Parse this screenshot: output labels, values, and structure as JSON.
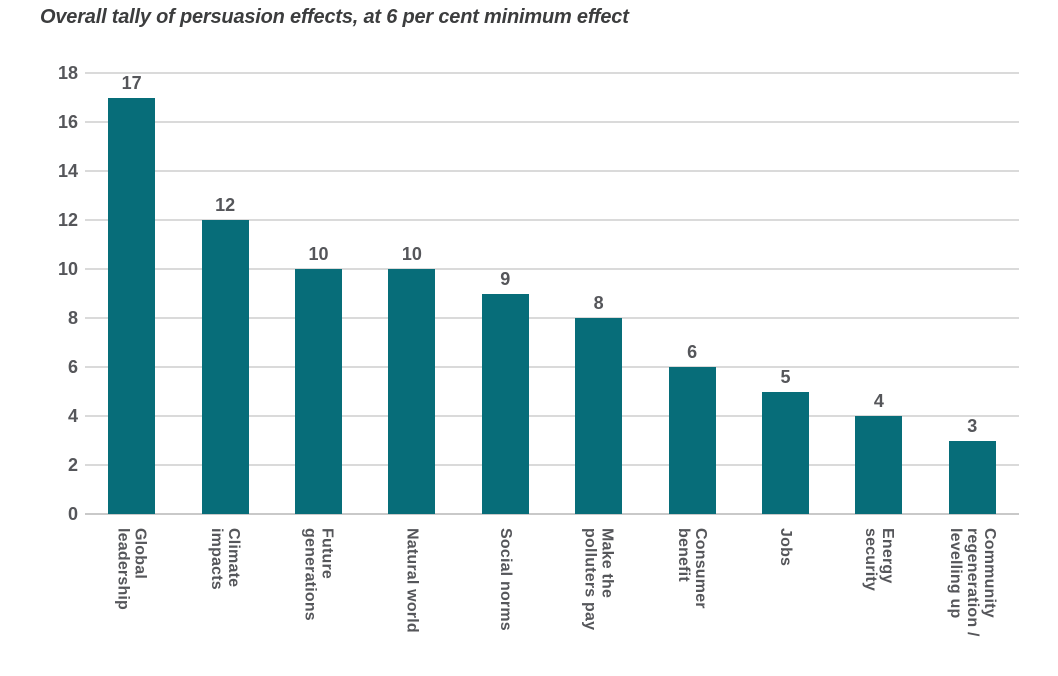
{
  "chart_data": {
    "type": "bar",
    "title": "Overall tally of persuasion effects, at 6 per cent minimum effect",
    "categories": [
      "Global\nleadership",
      "Climate\nimpacts",
      "Future\ngenerations",
      "Natural world",
      "Social norms",
      "Make the\npolluters pay",
      "Consumer\nbenefit",
      "Jobs",
      "Energy\nsecurity",
      "Community\nregeneration /\nlevelling up"
    ],
    "values": [
      17,
      12,
      10,
      10,
      9,
      8,
      6,
      5,
      4,
      3
    ],
    "xlabel": "",
    "ylabel": "",
    "ylim": [
      0,
      18
    ],
    "ytick_step": 2,
    "ytick_labels": [
      "0",
      "2",
      "4",
      "6",
      "8",
      "10",
      "12",
      "14",
      "16",
      "18"
    ],
    "grid": "horizontal",
    "legend_position": "none",
    "bar_color": "#076d79",
    "value_label_color": "#55565a",
    "axis_label_color": "#55565a",
    "title_color": "#3c3d3e",
    "gridline_color": "#dadada"
  }
}
